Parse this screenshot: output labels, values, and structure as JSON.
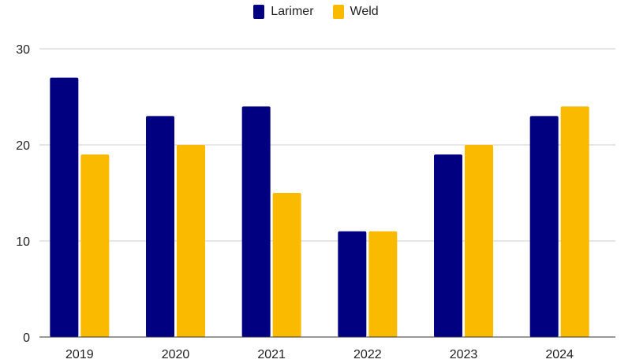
{
  "chart_data": {
    "type": "bar",
    "title": "",
    "xlabel": "",
    "ylabel": "",
    "categories": [
      "2019",
      "2020",
      "2021",
      "2022",
      "2023",
      "2024"
    ],
    "series": [
      {
        "name": "Larimer",
        "color": "#000080",
        "values": [
          27,
          23,
          24,
          11,
          19,
          23
        ]
      },
      {
        "name": "Weld",
        "color": "#F9BA00",
        "values": [
          19,
          20,
          15,
          11,
          20,
          24
        ]
      }
    ],
    "ylim": [
      0,
      30
    ],
    "yticks": [
      0,
      10,
      20,
      30
    ],
    "grid": true,
    "legend_position": "top-center"
  }
}
